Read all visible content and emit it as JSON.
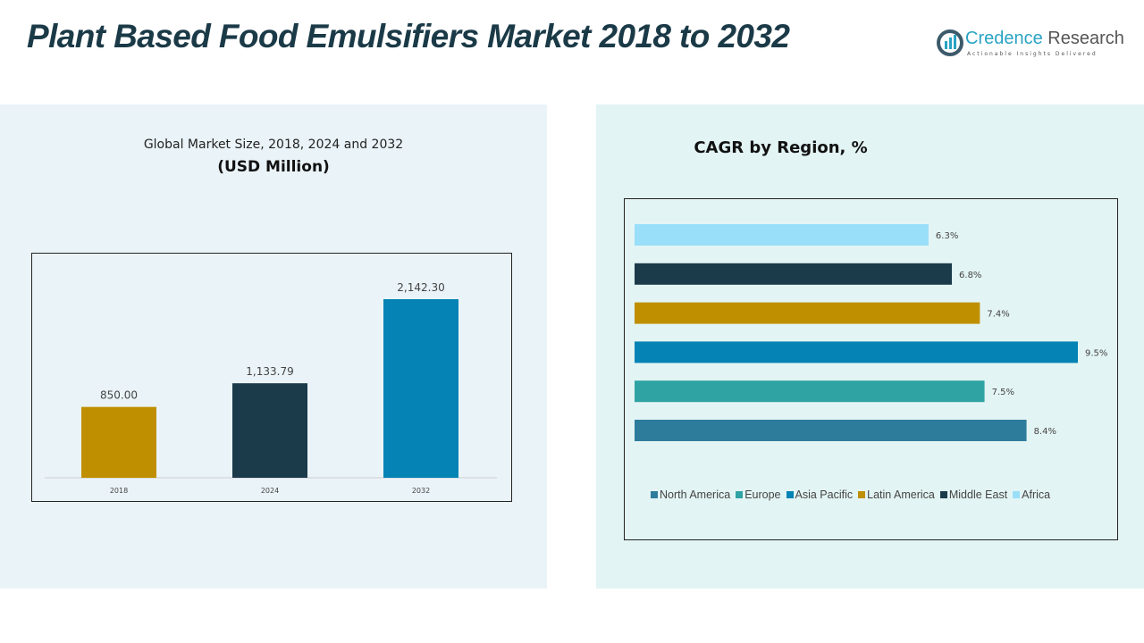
{
  "title": "Plant Based Food Emulsifiers Market 2018 to 2032",
  "logo": {
    "name1": "Credence",
    "name2": " Research",
    "tagline": "Actionable Insights Delivered"
  },
  "chart_data": [
    {
      "type": "bar",
      "title": "Global Market Size, 2018, 2024 and 2032",
      "subtitle": "(USD Million)",
      "categories": [
        "2018",
        "2024",
        "2032"
      ],
      "values": [
        850.0,
        1133.79,
        2142.3
      ],
      "labels": [
        "850.00",
        "1,133.79",
        "2,142.30"
      ],
      "colors": [
        "#bf8f00",
        "#1b3a4a",
        "#0583b4"
      ],
      "ylim": [
        0,
        2300
      ],
      "grid": false
    },
    {
      "type": "bar",
      "orientation": "horizontal",
      "title": "CAGR by Region, %",
      "categories": [
        "Africa",
        "Middle East",
        "Latin America",
        "Asia Pacific",
        "Europe",
        "North America"
      ],
      "values": [
        6.3,
        6.8,
        7.4,
        9.5,
        7.5,
        8.4
      ],
      "labels": [
        "6.3%",
        "6.8%",
        "7.4%",
        "9.5%",
        "7.5%",
        "8.4%"
      ],
      "colors": [
        "#99dff9",
        "#1b3a4a",
        "#bf8f00",
        "#0583b4",
        "#2fa3a3",
        "#2e7c9c"
      ],
      "legend": [
        "North America",
        "Europe",
        "Asia Pacific",
        "Latin America",
        "Middle East",
        "Africa"
      ],
      "legend_colors": [
        "#2e7c9c",
        "#2fa3a3",
        "#0583b4",
        "#bf8f00",
        "#1b3a4a",
        "#99dff9"
      ],
      "legend_position": "bottom",
      "xlim": [
        0,
        9.5
      ],
      "grid": false
    }
  ]
}
